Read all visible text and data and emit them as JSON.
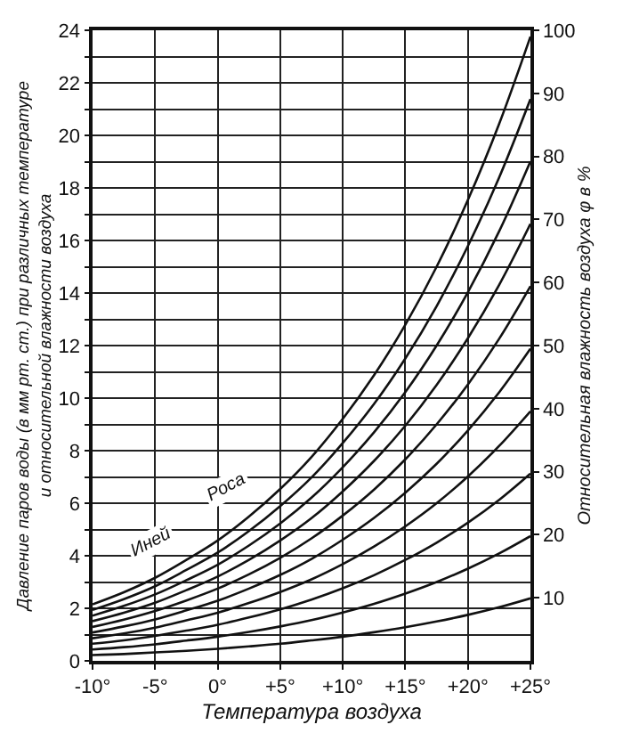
{
  "chart_data": {
    "type": "line",
    "xlabel": "Температура воздуха",
    "ylabel": "Давление паров воды (в мм рт. ст.) при различных температуре\nи относительной влажности воздуха",
    "y2label": "Относительная влажность воздуха φ в %",
    "x": [
      -10,
      -7.5,
      -5,
      -2.5,
      0,
      2.5,
      5,
      7.5,
      10,
      12.5,
      15,
      17.5,
      20,
      22.5,
      25
    ],
    "series": [
      {
        "color": "#111111",
        "values": [
          0.22,
          0.26,
          0.32,
          0.38,
          0.46,
          0.55,
          0.65,
          0.78,
          0.92,
          1.09,
          1.28,
          1.5,
          1.75,
          2.04,
          2.38
        ]
      },
      {
        "color": "#111111",
        "values": [
          0.43,
          0.52,
          0.63,
          0.77,
          0.92,
          1.1,
          1.31,
          1.55,
          1.84,
          2.17,
          2.56,
          3.0,
          3.51,
          4.09,
          4.75
        ]
      },
      {
        "color": "#111111",
        "values": [
          0.65,
          0.78,
          0.95,
          1.15,
          1.37,
          1.65,
          1.96,
          2.33,
          2.76,
          3.26,
          3.84,
          4.5,
          5.26,
          6.13,
          7.13
        ]
      },
      {
        "color": "#111111",
        "values": [
          0.86,
          1.04,
          1.26,
          1.54,
          1.83,
          2.2,
          2.62,
          3.1,
          3.68,
          4.35,
          5.12,
          6.0,
          7.02,
          8.18,
          9.5
        ]
      },
      {
        "color": "#111111",
        "values": [
          1.08,
          1.31,
          1.58,
          1.92,
          2.29,
          2.75,
          3.27,
          3.88,
          4.61,
          5.44,
          6.4,
          7.5,
          8.77,
          10.22,
          11.88
        ]
      },
      {
        "color": "#111111",
        "values": [
          1.29,
          1.57,
          1.9,
          2.3,
          2.75,
          3.29,
          3.92,
          4.66,
          5.53,
          6.52,
          7.67,
          9.0,
          10.52,
          12.26,
          14.26
        ]
      },
      {
        "color": "#111111",
        "values": [
          1.51,
          1.83,
          2.21,
          2.69,
          3.21,
          3.84,
          4.58,
          5.43,
          6.45,
          7.61,
          8.95,
          10.5,
          12.28,
          14.31,
          16.63
        ]
      },
      {
        "color": "#111111",
        "values": [
          1.72,
          2.09,
          2.53,
          3.07,
          3.66,
          4.39,
          5.23,
          6.21,
          7.37,
          8.7,
          10.23,
          12.0,
          14.03,
          16.35,
          19.01
        ]
      },
      {
        "color": "#111111",
        "values": [
          1.94,
          2.35,
          2.84,
          3.46,
          4.12,
          4.94,
          5.89,
          6.98,
          8.29,
          9.78,
          11.51,
          13.5,
          15.79,
          18.4,
          21.38
        ]
      },
      {
        "color": "#111111",
        "values": [
          2.15,
          2.61,
          3.16,
          3.84,
          4.58,
          5.49,
          6.54,
          7.76,
          9.21,
          10.87,
          12.79,
          15.0,
          17.54,
          20.44,
          23.76
        ]
      }
    ],
    "annotations": [
      {
        "text": "Иней",
        "x": -3,
        "y": 3.6
      },
      {
        "text": "Роса",
        "x": 3,
        "y": 5.7
      }
    ],
    "xlim": [
      -10,
      25
    ],
    "xticks": [
      {
        "value": -10,
        "label": "-10°"
      },
      {
        "value": -5,
        "label": "-5°"
      },
      {
        "value": 0,
        "label": "0°"
      },
      {
        "value": 5,
        "label": "+5°"
      },
      {
        "value": 10,
        "label": "+10°"
      },
      {
        "value": 15,
        "label": "+15°"
      },
      {
        "value": 20,
        "label": "+20°"
      },
      {
        "value": 25,
        "label": "+25°"
      }
    ],
    "ylim": [
      0,
      24
    ],
    "yticks": [
      0,
      {
        "value": 1,
        "label": null
      },
      2,
      {
        "value": 3,
        "label": null
      },
      4,
      {
        "value": 5,
        "label": null
      },
      6,
      {
        "value": 7,
        "label": null
      },
      8,
      {
        "value": 9,
        "label": null
      },
      10,
      {
        "value": 11,
        "label": null
      },
      12,
      {
        "value": 13,
        "label": null
      },
      14,
      {
        "value": 15,
        "label": null
      },
      16,
      {
        "value": 17,
        "label": null
      },
      18,
      {
        "value": 19,
        "label": null
      },
      20,
      {
        "value": 21,
        "label": null
      },
      22,
      {
        "value": 23,
        "label": null
      },
      24
    ],
    "y2lim": [
      0,
      100
    ],
    "y2ticks": [
      10,
      20,
      30,
      40,
      50,
      60,
      70,
      80,
      90,
      100
    ],
    "grid": true,
    "marker": "none",
    "line_style": "solid"
  }
}
